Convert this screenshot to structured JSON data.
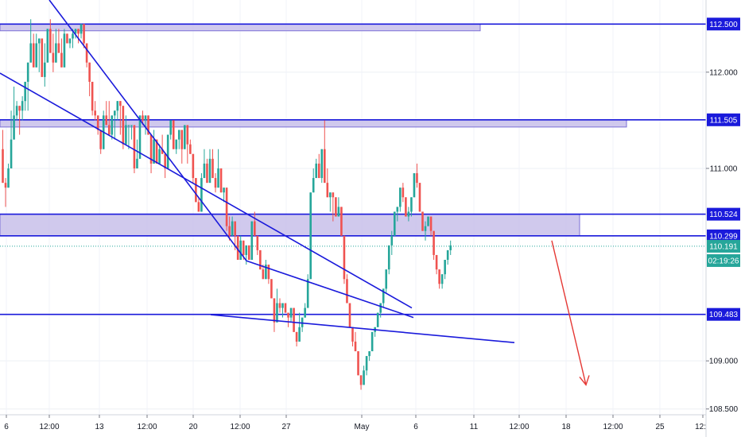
{
  "chart_data": {
    "type": "candlestick",
    "title": "",
    "xlabel": "",
    "ylabel": "",
    "ylim": [
      108.44,
      112.75
    ],
    "price_axis_ticks": [
      "112.500",
      "112.000",
      "111.505",
      "111.000",
      "110.524",
      "110.299",
      "110.191",
      "109.483",
      "109.000",
      "108.500"
    ],
    "time_axis_ticks": [
      "6",
      "12:00",
      "13",
      "12:00",
      "20",
      "12:00",
      "27",
      "May",
      "6",
      "11",
      "12:00",
      "18",
      "12:00",
      "25",
      "12:"
    ],
    "horizontal_levels": [
      {
        "label": "112.500",
        "value": 112.5,
        "zone_to": 112.43,
        "zone_extends": "left"
      },
      {
        "label": "111.505",
        "value": 111.505,
        "zone_to": 111.43,
        "zone_extends": "left"
      },
      {
        "label": "110.524",
        "value": 110.524,
        "zone_to": 110.299,
        "zone_extends": "left"
      },
      {
        "label": "110.299",
        "value": 110.299
      },
      {
        "label": "109.483",
        "value": 109.483
      }
    ],
    "current_price": {
      "label": "110.191",
      "value": 110.191,
      "countdown": "02:19:26"
    },
    "trendlines": [
      {
        "name": "channel-upper",
        "from": {
          "bar": 8,
          "value": 112.75
        },
        "to": {
          "bar": 77,
          "value": 110.04
        }
      },
      {
        "name": "channel-lower",
        "from": {
          "bar": 0,
          "value": 111.99
        },
        "to": {
          "bar": 78,
          "value": 109.55
        }
      },
      {
        "name": "breakout-line",
        "from": {
          "bar": 72,
          "value": 109.48
        },
        "to": {
          "bar": 101,
          "value": 109.19
        }
      }
    ],
    "projection_arrow": {
      "from": {
        "bar": 173,
        "value": 110.25
      },
      "to": {
        "bar": 186,
        "value": 108.75
      }
    },
    "colors": {
      "up": "#26a69a",
      "down": "#ef5350",
      "levels": "#1a1adb",
      "zone_fill": "#c8c0ea",
      "zone_border": "#7b6fd6",
      "arrow": "#e53935",
      "current_price": "#26a69a"
    },
    "candles": [
      [
        111.2,
        111.4,
        111.0,
        110.85
      ],
      [
        110.85,
        110.9,
        110.6,
        110.8
      ],
      [
        110.8,
        111.05,
        110.9,
        111.0
      ],
      [
        111.0,
        111.5,
        111.6,
        111.3
      ],
      [
        111.3,
        111.7,
        111.85,
        111.55
      ],
      [
        111.55,
        111.5,
        111.7,
        111.65
      ],
      [
        111.65,
        111.5,
        111.35,
        111.6
      ],
      [
        111.6,
        111.75,
        111.5,
        111.7
      ],
      [
        111.7,
        111.6,
        111.6,
        111.9
      ],
      [
        111.9,
        111.8,
        111.6,
        112.1
      ],
      [
        112.1,
        112.5,
        112.55,
        112.3
      ],
      [
        112.3,
        112.4,
        112.25,
        112.05
      ],
      [
        112.05,
        112.4,
        112.2,
        112.3
      ],
      [
        112.3,
        112.1,
        112.0,
        112.35
      ],
      [
        112.35,
        112.25,
        112.05,
        111.95
      ],
      [
        111.95,
        112.3,
        111.85,
        112.1
      ],
      [
        112.1,
        112.25,
        112.15,
        112.45
      ],
      [
        112.45,
        112.55,
        112.3,
        112.2
      ],
      [
        112.2,
        112.4,
        112.0,
        112.1
      ],
      [
        112.1,
        112.4,
        112.45,
        112.3
      ],
      [
        112.3,
        112.4,
        112.45,
        112.2
      ],
      [
        112.2,
        112.35,
        112.25,
        112.05
      ],
      [
        112.05,
        112.2,
        112.45,
        112.4
      ],
      [
        112.4,
        112.35,
        112.4,
        112.3
      ],
      [
        112.3,
        112.25,
        112.25,
        112.35
      ],
      [
        112.35,
        112.45,
        112.25,
        112.4
      ],
      [
        112.4,
        112.45,
        112.35,
        112.45
      ],
      [
        112.45,
        112.35,
        112.3,
        112.4
      ],
      [
        112.4,
        112.5,
        112.35,
        112.5
      ],
      [
        112.5,
        112.45,
        112.25,
        112.3
      ],
      [
        112.3,
        112.2,
        112.05,
        112.1
      ],
      [
        112.1,
        111.9,
        111.75,
        111.9
      ],
      [
        111.9,
        111.8,
        111.55,
        111.6
      ],
      [
        111.6,
        111.7,
        111.5,
        111.55
      ],
      [
        111.55,
        111.45,
        111.35,
        111.4
      ],
      [
        111.4,
        111.3,
        111.15,
        111.2
      ],
      [
        111.2,
        111.6,
        111.3,
        111.55
      ],
      [
        111.55,
        111.7,
        111.45,
        111.45
      ],
      [
        111.45,
        111.7,
        111.35,
        111.35
      ],
      [
        111.35,
        111.4,
        111.3,
        111.55
      ],
      [
        111.55,
        111.4,
        111.3,
        111.6
      ],
      [
        111.6,
        111.5,
        111.65,
        111.7
      ],
      [
        111.7,
        111.35,
        111.35,
        111.65
      ],
      [
        111.65,
        111.35,
        111.2,
        111.25
      ],
      [
        111.25,
        111.5,
        111.55,
        111.45
      ],
      [
        111.45,
        111.2,
        111.25,
        111.45
      ],
      [
        111.45,
        111.35,
        111.3,
        111.45
      ],
      [
        111.45,
        111.15,
        110.95,
        111.0
      ],
      [
        111.0,
        111.3,
        111.05,
        111.1
      ],
      [
        111.1,
        111.4,
        111.3,
        111.55
      ],
      [
        111.55,
        111.6,
        111.45,
        111.5
      ],
      [
        111.5,
        111.4,
        111.35,
        111.55
      ],
      [
        111.55,
        111.5,
        111.4,
        111.35
      ],
      [
        111.35,
        111.3,
        110.95,
        111.05
      ],
      [
        111.05,
        111.4,
        111.25,
        111.3
      ],
      [
        111.3,
        111.3,
        111.2,
        111.05
      ],
      [
        111.05,
        111.25,
        111.15,
        111.2
      ],
      [
        111.2,
        111.35,
        111.2,
        111.15
      ],
      [
        111.15,
        111.1,
        110.9,
        111.0
      ],
      [
        111.0,
        111.3,
        111.25,
        111.35
      ],
      [
        111.35,
        111.35,
        111.3,
        111.5
      ],
      [
        111.5,
        111.4,
        111.2,
        111.2
      ],
      [
        111.2,
        111.3,
        111.15,
        111.3
      ],
      [
        111.3,
        111.2,
        111.35,
        111.4
      ],
      [
        111.4,
        111.15,
        111.05,
        111.2
      ],
      [
        111.2,
        111.3,
        111.3,
        111.45
      ],
      [
        111.45,
        111.2,
        111.05,
        111.25
      ],
      [
        111.25,
        111.3,
        111.2,
        111.15
      ],
      [
        111.15,
        110.95,
        110.85,
        110.9
      ],
      [
        110.9,
        110.85,
        110.7,
        110.65
      ],
      [
        110.65,
        110.7,
        110.6,
        110.55
      ],
      [
        110.55,
        110.95,
        110.75,
        110.9
      ],
      [
        110.9,
        111.2,
        110.9,
        111.05
      ],
      [
        111.05,
        111.1,
        110.95,
        110.85
      ],
      [
        110.85,
        111.2,
        111.05,
        111.1
      ],
      [
        111.1,
        111.2,
        110.9,
        110.9
      ],
      [
        110.9,
        110.95,
        110.75,
        110.8
      ],
      [
        110.8,
        111.2,
        110.85,
        111.0
      ],
      [
        111.0,
        110.9,
        110.8,
        110.75
      ],
      [
        110.75,
        110.8,
        110.65,
        110.8
      ],
      [
        110.8,
        110.55,
        110.35,
        110.4
      ],
      [
        110.4,
        110.5,
        110.25,
        110.3
      ],
      [
        110.3,
        110.5,
        110.35,
        110.45
      ],
      [
        110.45,
        110.35,
        110.15,
        110.3
      ],
      [
        110.3,
        110.25,
        110.1,
        110.05
      ],
      [
        110.05,
        110.3,
        110.15,
        110.25
      ],
      [
        110.25,
        110.15,
        110.05,
        110.1
      ],
      [
        110.1,
        110.0,
        110.15,
        110.2
      ],
      [
        110.2,
        110.15,
        110.1,
        110.05
      ],
      [
        110.05,
        110.3,
        110.25,
        110.45
      ],
      [
        110.45,
        110.55,
        110.35,
        110.3
      ],
      [
        110.3,
        110.2,
        110.1,
        110.15
      ],
      [
        110.15,
        110.1,
        109.95,
        109.95
      ],
      [
        109.95,
        110.0,
        109.85,
        109.85
      ],
      [
        109.85,
        110.05,
        109.95,
        110.0
      ],
      [
        110.0,
        109.9,
        109.8,
        109.85
      ],
      [
        109.85,
        109.8,
        109.65,
        109.65
      ],
      [
        109.65,
        109.5,
        109.3,
        109.4
      ],
      [
        109.4,
        109.75,
        109.55,
        109.6
      ],
      [
        109.6,
        109.65,
        109.5,
        109.55
      ],
      [
        109.55,
        109.6,
        109.45,
        109.6
      ],
      [
        109.6,
        109.6,
        109.5,
        109.5
      ],
      [
        109.5,
        109.4,
        109.35,
        109.45
      ],
      [
        109.45,
        109.5,
        109.4,
        109.55
      ],
      [
        109.55,
        109.45,
        109.3,
        109.3
      ],
      [
        109.3,
        109.25,
        109.15,
        109.2
      ],
      [
        109.2,
        109.5,
        109.35,
        109.35
      ],
      [
        109.35,
        109.4,
        109.3,
        109.45
      ],
      [
        109.45,
        109.6,
        109.45,
        109.55
      ],
      [
        109.55,
        109.9,
        109.7,
        109.85
      ],
      [
        109.85,
        110.0,
        110.3,
        110.75
      ],
      [
        110.75,
        111.0,
        110.75,
        110.9
      ],
      [
        110.9,
        111.1,
        110.95,
        111.05
      ],
      [
        111.05,
        111.15,
        110.95,
        110.9
      ],
      [
        110.9,
        111.0,
        110.85,
        111.2
      ],
      [
        111.2,
        111.5,
        111.1,
        110.85
      ],
      [
        110.85,
        111.0,
        110.8,
        110.7
      ],
      [
        110.7,
        110.6,
        110.55,
        110.75
      ],
      [
        110.75,
        110.65,
        110.45,
        110.7
      ],
      [
        110.7,
        110.55,
        110.5,
        110.5
      ],
      [
        110.5,
        110.7,
        110.5,
        110.6
      ],
      [
        110.6,
        110.5,
        110.3,
        110.3
      ],
      [
        110.3,
        110.05,
        109.8,
        109.85
      ],
      [
        109.85,
        109.9,
        109.7,
        109.6
      ],
      [
        109.6,
        109.5,
        109.4,
        109.35
      ],
      [
        109.35,
        109.3,
        109.15,
        109.2
      ],
      [
        109.2,
        109.3,
        109.2,
        109.1
      ],
      [
        109.1,
        109.05,
        108.95,
        108.85
      ],
      [
        108.85,
        108.85,
        108.7,
        108.75
      ],
      [
        108.75,
        108.95,
        108.85,
        108.9
      ],
      [
        108.9,
        109.0,
        108.85,
        109.05
      ],
      [
        109.05,
        109.1,
        109.0,
        109.1
      ],
      [
        109.1,
        109.25,
        109.15,
        109.3
      ],
      [
        109.3,
        109.35,
        109.25,
        109.35
      ],
      [
        109.35,
        109.45,
        109.35,
        109.5
      ],
      [
        109.5,
        109.5,
        109.45,
        109.6
      ],
      [
        109.6,
        109.65,
        109.55,
        109.75
      ],
      [
        109.75,
        109.8,
        109.7,
        109.95
      ],
      [
        109.95,
        110.1,
        109.9,
        110.2
      ],
      [
        110.2,
        110.35,
        110.1,
        110.3
      ],
      [
        110.3,
        110.45,
        110.3,
        110.55
      ],
      [
        110.55,
        110.6,
        110.45,
        110.6
      ],
      [
        110.6,
        110.75,
        110.55,
        110.8
      ],
      [
        110.8,
        110.85,
        110.65,
        110.7
      ],
      [
        110.7,
        110.6,
        110.55,
        110.5
      ],
      [
        110.5,
        110.6,
        110.45,
        110.55
      ],
      [
        110.55,
        110.65,
        110.5,
        110.7
      ],
      [
        110.7,
        110.9,
        110.75,
        110.95
      ],
      [
        110.95,
        111.05,
        110.8,
        110.85
      ],
      [
        110.85,
        110.75,
        110.65,
        110.55
      ],
      [
        110.55,
        110.5,
        110.35,
        110.35
      ],
      [
        110.35,
        110.45,
        110.25,
        110.4
      ],
      [
        110.4,
        110.5,
        110.4,
        110.5
      ],
      [
        110.5,
        110.45,
        110.3,
        110.35
      ],
      [
        110.35,
        110.2,
        110.05,
        110.1
      ],
      [
        110.1,
        110.0,
        109.9,
        109.95
      ],
      [
        109.95,
        109.85,
        109.75,
        109.8
      ],
      [
        109.8,
        109.9,
        109.75,
        109.9
      ],
      [
        109.9,
        110.0,
        109.85,
        110.05
      ],
      [
        110.05,
        110.15,
        110.0,
        110.15
      ],
      [
        110.15,
        110.25,
        110.1,
        110.2
      ]
    ]
  }
}
